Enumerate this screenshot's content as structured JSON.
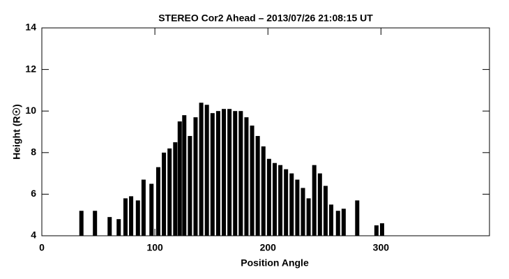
{
  "chart_data": {
    "type": "range",
    "title": "STEREO Cor2 Ahead – 2013/07/26  21:08:15 UT",
    "x_label": "Position Angle",
    "y_label": "Height (R☉)",
    "color": "#000000",
    "x": [
      35,
      47,
      60,
      68,
      74,
      79,
      85,
      90,
      97,
      103,
      108,
      113,
      118,
      122,
      126,
      131,
      136,
      141,
      146,
      151,
      156,
      161,
      166,
      171,
      176,
      181,
      186,
      191,
      196,
      201,
      206,
      211,
      216,
      221,
      226,
      231,
      236,
      241,
      246,
      251,
      256,
      262,
      267,
      279,
      296,
      301
    ],
    "low": [
      4,
      4,
      4,
      4,
      4,
      4,
      4,
      4,
      4,
      4,
      4,
      4,
      4,
      4,
      4,
      4,
      4,
      4,
      4,
      4,
      4,
      4,
      4,
      4,
      4,
      4,
      4,
      4,
      4,
      4,
      4,
      4,
      4,
      4,
      4,
      4,
      4,
      4,
      4,
      4,
      4,
      4,
      4,
      4,
      4,
      4
    ],
    "high": [
      5.2,
      5.2,
      4.9,
      4.8,
      5.8,
      5.9,
      5.7,
      6.7,
      6.5,
      7.3,
      8.0,
      8.2,
      8.5,
      9.5,
      9.8,
      8.8,
      9.7,
      10.4,
      10.3,
      9.9,
      10.0,
      10.1,
      10.1,
      10.0,
      10.0,
      9.7,
      9.3,
      8.8,
      8.3,
      7.7,
      7.5,
      7.4,
      7.2,
      7.0,
      6.7,
      6.3,
      5.8,
      7.4,
      7.0,
      6.4,
      5.5,
      5.2,
      5.3,
      5.7,
      4.5,
      4.6
    ],
    "xlim": [
      0,
      396
    ],
    "xticks": [
      0,
      100,
      200,
      300
    ],
    "ylim": [
      4,
      14
    ],
    "yticks": [
      4,
      6,
      8,
      10,
      12,
      14
    ]
  }
}
